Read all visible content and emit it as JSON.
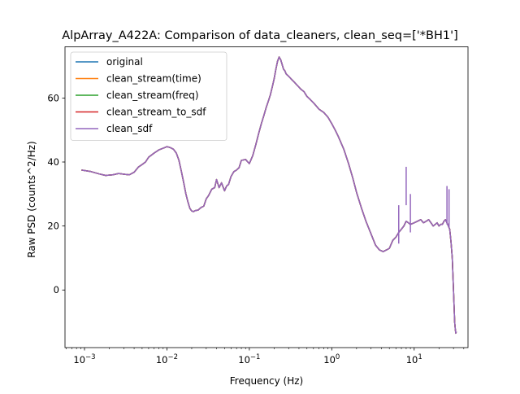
{
  "chart_data": {
    "type": "line",
    "title": "AlpArray_A422A: Comparison of data_cleaners, clean_seq=['*BH1']",
    "xlabel": "Frequency (Hz)",
    "ylabel": "Raw PSD (counts^2/Hz)",
    "xscale": "log",
    "xlim": [
      0.00058,
      45
    ],
    "ylim": [
      -18,
      76
    ],
    "x_ticks": [
      {
        "value": 0.001,
        "base": "10",
        "exp": "−3"
      },
      {
        "value": 0.01,
        "base": "10",
        "exp": "−2"
      },
      {
        "value": 0.1,
        "base": "10",
        "exp": "−1"
      },
      {
        "value": 1,
        "base": "10",
        "exp": "0"
      },
      {
        "value": 10,
        "base": "10",
        "exp": "1"
      }
    ],
    "y_ticks": [
      {
        "value": 0,
        "label": "0"
      },
      {
        "value": 20,
        "label": "20"
      },
      {
        "value": 40,
        "label": "40"
      },
      {
        "value": 60,
        "label": "60"
      }
    ],
    "grid": false,
    "legend_position": "top-left",
    "series": [
      {
        "name": "original",
        "color": "#1f77b4"
      },
      {
        "name": "clean_stream(time)",
        "color": "#ff7f0e"
      },
      {
        "name": "clean_stream(freq)",
        "color": "#2ca02c"
      },
      {
        "name": "clean_stream_to_sdf",
        "color": "#d62728"
      },
      {
        "name": "clean_sdf",
        "color": "#9467bd"
      }
    ],
    "x": [
      0.00092,
      0.0012,
      0.0015,
      0.0018,
      0.0022,
      0.0026,
      0.003,
      0.0035,
      0.004,
      0.0045,
      0.005,
      0.0055,
      0.006,
      0.007,
      0.008,
      0.009,
      0.01,
      0.011,
      0.012,
      0.013,
      0.014,
      0.015,
      0.016,
      0.017,
      0.018,
      0.019,
      0.02,
      0.021,
      0.022,
      0.024,
      0.026,
      0.028,
      0.03,
      0.032,
      0.035,
      0.038,
      0.04,
      0.043,
      0.046,
      0.05,
      0.053,
      0.056,
      0.06,
      0.065,
      0.07,
      0.075,
      0.08,
      0.09,
      0.1,
      0.11,
      0.12,
      0.13,
      0.14,
      0.15,
      0.16,
      0.17,
      0.18,
      0.19,
      0.2,
      0.21,
      0.22,
      0.23,
      0.24,
      0.25,
      0.26,
      0.27,
      0.28,
      0.3,
      0.32,
      0.35,
      0.38,
      0.42,
      0.46,
      0.5,
      0.55,
      0.6,
      0.65,
      0.7,
      0.8,
      0.9,
      1.0,
      1.1,
      1.2,
      1.4,
      1.6,
      1.8,
      2.0,
      2.3,
      2.6,
      3.0,
      3.4,
      3.8,
      4.2,
      4.6,
      5.0,
      5.5,
      6.0,
      6.5,
      7.0,
      7.5,
      8.0,
      8.5,
      9.0,
      10.0,
      11.0,
      12.0,
      13.0,
      14.0,
      15.0,
      16.0,
      17.0,
      18.0,
      19.0,
      20.0,
      21.0,
      22.0,
      23.0,
      24.0,
      25.0,
      26.0,
      27.0,
      28.0,
      29.0,
      29.5,
      30.0,
      30.5,
      31.0,
      31.5,
      32.0,
      32.5
    ],
    "y": [
      37.5,
      37.0,
      36.3,
      35.8,
      36.0,
      36.4,
      36.2,
      36.0,
      36.8,
      38.4,
      39.2,
      40.0,
      41.5,
      42.8,
      43.8,
      44.3,
      44.8,
      44.5,
      44.0,
      42.8,
      40.5,
      37.0,
      33.5,
      30.0,
      27.5,
      25.5,
      24.7,
      24.5,
      24.8,
      25.0,
      25.8,
      26.2,
      28.5,
      29.5,
      31.5,
      32.0,
      34.5,
      32.0,
      33.5,
      31.0,
      32.5,
      33.0,
      35.5,
      37.0,
      37.5,
      38.2,
      40.5,
      40.8,
      39.5,
      42.0,
      45.5,
      49.0,
      52.0,
      54.5,
      57.0,
      59.0,
      61.0,
      63.5,
      66.0,
      69.0,
      71.5,
      72.8,
      72.0,
      70.5,
      69.0,
      68.5,
      67.5,
      66.8,
      66.0,
      65.0,
      64.0,
      62.8,
      62.0,
      60.5,
      59.5,
      58.5,
      57.5,
      56.5,
      55.5,
      54.0,
      52.0,
      50.0,
      48.0,
      44.0,
      39.5,
      35.0,
      30.5,
      25.5,
      21.5,
      17.5,
      14.0,
      12.5,
      12.0,
      12.5,
      13.0,
      15.5,
      16.5,
      18.0,
      19.0,
      20.0,
      21.5,
      21.0,
      20.5,
      21.0,
      21.5,
      22.0,
      21.0,
      21.5,
      22.0,
      21.0,
      20.0,
      20.5,
      21.0,
      20.0,
      20.5,
      20.5,
      21.5,
      22.0,
      21.0,
      20.0,
      19.0,
      15.0,
      10.0,
      5.0,
      0.0,
      -5.0,
      -10.0,
      -12.0,
      -13.5,
      -13.0
    ],
    "annotations": [
      {
        "x": 8.0,
        "y": 38.5
      },
      {
        "x": 25.0,
        "y": 32.5
      },
      {
        "x": 26.5,
        "y": 31.5
      },
      {
        "x": 9.0,
        "y": 30.0
      },
      {
        "x": 6.5,
        "y": 26.5
      }
    ]
  }
}
